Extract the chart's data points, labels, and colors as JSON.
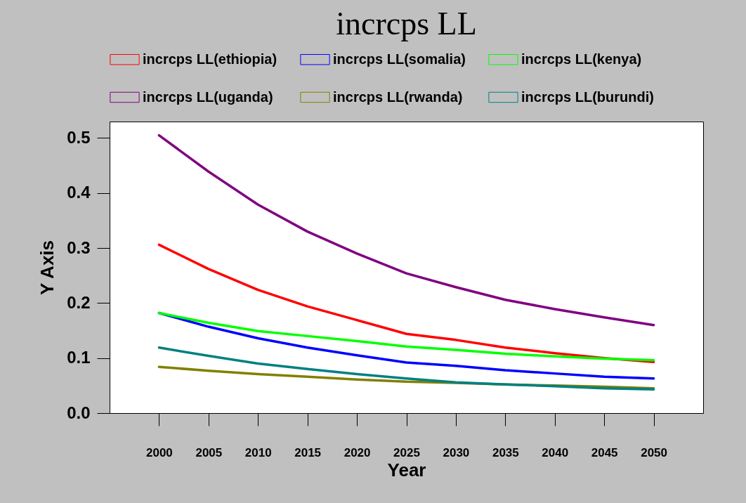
{
  "chart_data": {
    "type": "line",
    "title": "incrcps LL",
    "xlabel": "Year",
    "ylabel": "Y Axis",
    "x": [
      2000,
      2005,
      2010,
      2015,
      2020,
      2025,
      2030,
      2035,
      2040,
      2045,
      2050
    ],
    "series": [
      {
        "name": "incrcps LL(ethiopia)",
        "color": "#ff0000",
        "values": [
          0.306,
          0.262,
          0.224,
          0.194,
          0.169,
          0.144,
          0.133,
          0.119,
          0.109,
          0.1,
          0.093
        ]
      },
      {
        "name": "incrcps LL(somalia)",
        "color": "#0000ff",
        "values": [
          0.182,
          0.157,
          0.136,
          0.119,
          0.105,
          0.092,
          0.086,
          0.078,
          0.072,
          0.066,
          0.063
        ]
      },
      {
        "name": "incrcps LL(kenya)",
        "color": "#00ff00",
        "values": [
          0.182,
          0.164,
          0.149,
          0.14,
          0.131,
          0.121,
          0.115,
          0.108,
          0.103,
          0.099,
          0.096
        ]
      },
      {
        "name": "incrcps LL(uganda)",
        "color": "#800080",
        "values": [
          0.505,
          0.439,
          0.379,
          0.33,
          0.29,
          0.254,
          0.229,
          0.206,
          0.189,
          0.174,
          0.16
        ]
      },
      {
        "name": "incrcps LL(rwanda)",
        "color": "#808000",
        "values": [
          0.084,
          0.077,
          0.071,
          0.066,
          0.061,
          0.057,
          0.055,
          0.052,
          0.05,
          0.048,
          0.045
        ]
      },
      {
        "name": "incrcps LL(burundi)",
        "color": "#008080",
        "values": [
          0.119,
          0.104,
          0.09,
          0.08,
          0.071,
          0.063,
          0.056,
          0.052,
          0.049,
          0.045,
          0.043
        ]
      }
    ],
    "xlim": [
      1995,
      2055
    ],
    "xticks": [
      2000,
      2005,
      2010,
      2015,
      2020,
      2025,
      2030,
      2035,
      2040,
      2045,
      2050
    ],
    "ylim": [
      0,
      0.53
    ],
    "yticks": [
      {
        "value": 0,
        "label": "0.0"
      },
      0.1,
      0.2,
      0.3,
      0.4,
      0.5
    ],
    "grid": false,
    "legend": "top",
    "marker": "none",
    "line_style": "solid"
  }
}
